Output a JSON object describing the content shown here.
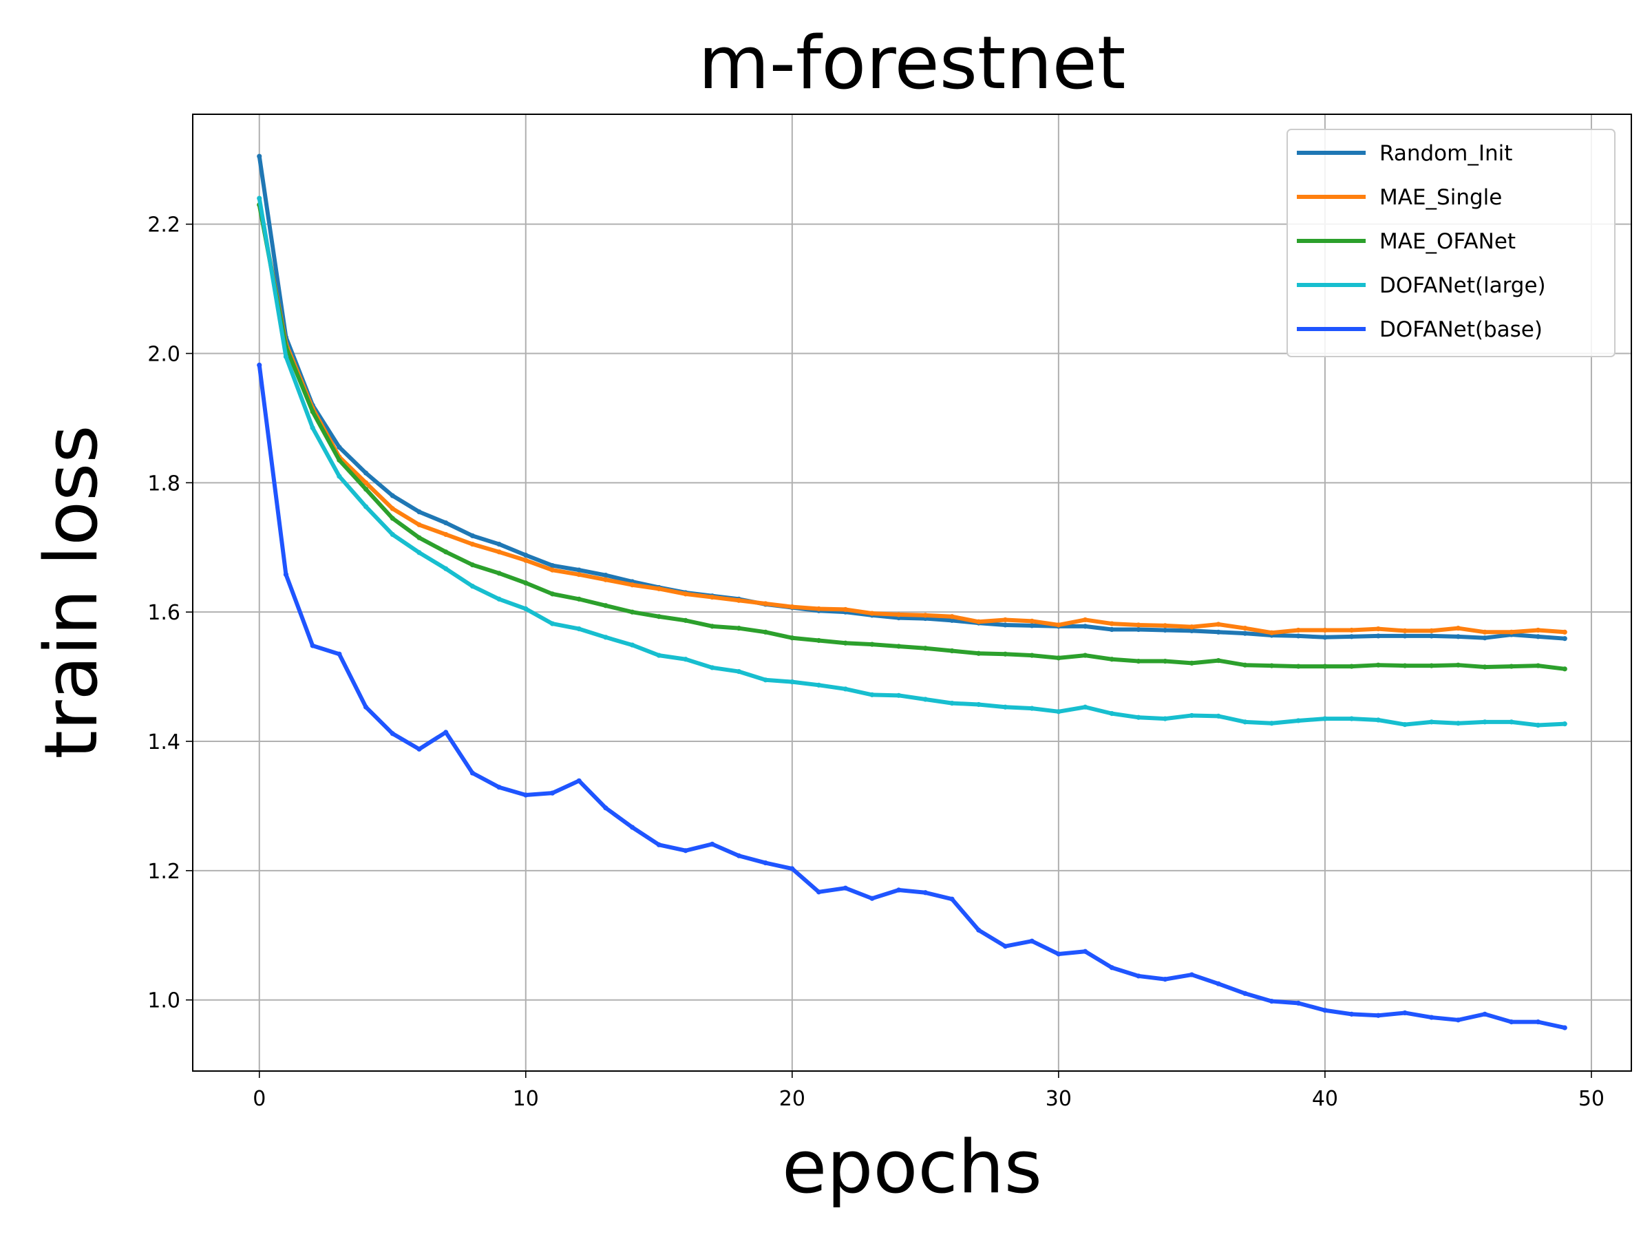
{
  "chart_data": {
    "type": "line",
    "title": "m-forestnet",
    "xlabel": "epochs",
    "ylabel": "train loss",
    "xlim": [
      -2.5,
      51.5
    ],
    "ylim": [
      0.89,
      2.37
    ],
    "xticks": [
      0,
      10,
      20,
      30,
      40,
      50
    ],
    "yticks": [
      1.0,
      1.2,
      1.4,
      1.6,
      1.8,
      2.0,
      2.2
    ],
    "xtick_labels": [
      "0",
      "10",
      "20",
      "30",
      "40",
      "50"
    ],
    "ytick_labels": [
      "1.0",
      "1.2",
      "1.4",
      "1.6",
      "1.8",
      "2.0",
      "2.2"
    ],
    "grid": true,
    "legend_position": "top-right",
    "x": [
      0,
      1,
      2,
      3,
      4,
      5,
      6,
      7,
      8,
      9,
      10,
      11,
      12,
      13,
      14,
      15,
      16,
      17,
      18,
      19,
      20,
      21,
      22,
      23,
      24,
      25,
      26,
      27,
      28,
      29,
      30,
      31,
      32,
      33,
      34,
      35,
      36,
      37,
      38,
      39,
      40,
      41,
      42,
      43,
      44,
      45,
      46,
      47,
      48,
      49
    ],
    "series": [
      {
        "name": "Random_Init",
        "color": "#1f77b4",
        "values": [
          2.305,
          2.025,
          1.92,
          1.855,
          1.815,
          1.78,
          1.755,
          1.738,
          1.718,
          1.705,
          1.688,
          1.672,
          1.665,
          1.657,
          1.647,
          1.638,
          1.63,
          1.625,
          1.62,
          1.612,
          1.607,
          1.602,
          1.6,
          1.595,
          1.591,
          1.59,
          1.587,
          1.583,
          1.58,
          1.579,
          1.578,
          1.578,
          1.573,
          1.573,
          1.572,
          1.571,
          1.569,
          1.567,
          1.564,
          1.563,
          1.561,
          1.562,
          1.563,
          1.563,
          1.563,
          1.562,
          1.56,
          1.565,
          1.562,
          1.559
        ]
      },
      {
        "name": "MAE_Single",
        "color": "#ff7f0e",
        "values": [
          2.23,
          2.015,
          1.915,
          1.84,
          1.8,
          1.76,
          1.735,
          1.72,
          1.705,
          1.693,
          1.68,
          1.665,
          1.658,
          1.65,
          1.642,
          1.636,
          1.628,
          1.623,
          1.618,
          1.613,
          1.608,
          1.605,
          1.604,
          1.598,
          1.596,
          1.595,
          1.593,
          1.585,
          1.588,
          1.586,
          1.58,
          1.588,
          1.582,
          1.58,
          1.579,
          1.577,
          1.581,
          1.575,
          1.568,
          1.572,
          1.572,
          1.572,
          1.574,
          1.571,
          1.571,
          1.575,
          1.569,
          1.569,
          1.572,
          1.569
        ]
      },
      {
        "name": "MAE_OFANet",
        "color": "#2ca02c",
        "values": [
          2.23,
          2.01,
          1.91,
          1.835,
          1.79,
          1.745,
          1.715,
          1.693,
          1.673,
          1.66,
          1.645,
          1.628,
          1.62,
          1.61,
          1.6,
          1.593,
          1.587,
          1.578,
          1.575,
          1.569,
          1.56,
          1.556,
          1.552,
          1.55,
          1.547,
          1.544,
          1.54,
          1.536,
          1.535,
          1.533,
          1.529,
          1.533,
          1.527,
          1.524,
          1.524,
          1.521,
          1.525,
          1.518,
          1.517,
          1.516,
          1.516,
          1.516,
          1.518,
          1.517,
          1.517,
          1.518,
          1.515,
          1.516,
          1.517,
          1.512
        ]
      },
      {
        "name": "DOFANet(large)",
        "color": "#17becf",
        "values": [
          2.24,
          1.995,
          1.885,
          1.81,
          1.763,
          1.72,
          1.692,
          1.667,
          1.64,
          1.62,
          1.605,
          1.582,
          1.574,
          1.561,
          1.549,
          1.533,
          1.527,
          1.514,
          1.508,
          1.495,
          1.492,
          1.487,
          1.481,
          1.472,
          1.471,
          1.465,
          1.459,
          1.457,
          1.453,
          1.451,
          1.446,
          1.453,
          1.443,
          1.437,
          1.435,
          1.44,
          1.439,
          1.43,
          1.428,
          1.432,
          1.435,
          1.435,
          1.433,
          1.426,
          1.43,
          1.428,
          1.43,
          1.43,
          1.425,
          1.427
        ]
      },
      {
        "name": "DOFANet(base)",
        "color": "#1f55ff",
        "values": [
          1.982,
          1.658,
          1.548,
          1.535,
          1.453,
          1.412,
          1.388,
          1.414,
          1.351,
          1.329,
          1.317,
          1.32,
          1.339,
          1.297,
          1.267,
          1.24,
          1.231,
          1.241,
          1.223,
          1.212,
          1.203,
          1.167,
          1.173,
          1.157,
          1.17,
          1.166,
          1.156,
          1.108,
          1.083,
          1.091,
          1.071,
          1.075,
          1.05,
          1.037,
          1.032,
          1.039,
          1.025,
          1.01,
          0.998,
          0.995,
          0.984,
          0.978,
          0.976,
          0.98,
          0.973,
          0.969,
          0.978,
          0.966,
          0.966,
          0.957
        ]
      }
    ]
  }
}
